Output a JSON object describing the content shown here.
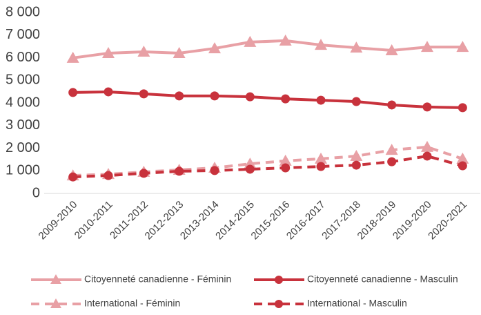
{
  "chart_data": {
    "type": "line",
    "categories": [
      "2009-2010",
      "2010-2011",
      "2011-2012",
      "2012-2013",
      "2013-2014",
      "2014-2015",
      "2015-2016",
      "2016-2017",
      "2017-2018",
      "2018-2019",
      "2019-2020",
      "2020-2021"
    ],
    "series": [
      {
        "name": "Citoyenneté canadienne - Féminin",
        "color": "#e8a0a5",
        "marker": "triangle",
        "dash": false,
        "values": [
          5990,
          6200,
          6260,
          6200,
          6410,
          6690,
          6750,
          6560,
          6440,
          6320,
          6470,
          6470
        ]
      },
      {
        "name": "Citoyenneté canadienne - Masculin",
        "color": "#c8323c",
        "marker": "circle",
        "dash": false,
        "values": [
          4460,
          4490,
          4400,
          4310,
          4310,
          4270,
          4180,
          4120,
          4060,
          3910,
          3820,
          3790
        ]
      },
      {
        "name": "International - Féminin",
        "color": "#e8a0a5",
        "marker": "triangle",
        "dash": true,
        "values": [
          790,
          850,
          950,
          1040,
          1130,
          1310,
          1440,
          1530,
          1650,
          1920,
          2050,
          1530
        ]
      },
      {
        "name": "International - Masculin",
        "color": "#c8323c",
        "marker": "circle",
        "dash": true,
        "values": [
          730,
          790,
          890,
          980,
          1010,
          1070,
          1130,
          1190,
          1250,
          1400,
          1650,
          1220
        ]
      }
    ],
    "ylim": [
      0,
      8000
    ],
    "yticks": [
      0,
      {
        "value": 1000,
        "label": "1 000"
      },
      {
        "value": 2000,
        "label": "2 000"
      },
      {
        "value": 3000,
        "label": "3 000"
      },
      {
        "value": 4000,
        "label": "4 000"
      },
      {
        "value": 5000,
        "label": "5 000"
      },
      {
        "value": 6000,
        "label": "6 000"
      },
      {
        "value": 7000,
        "label": "7 000"
      },
      {
        "value": 8000,
        "label": "8 000"
      }
    ],
    "grid": false,
    "legend": "bottom"
  }
}
